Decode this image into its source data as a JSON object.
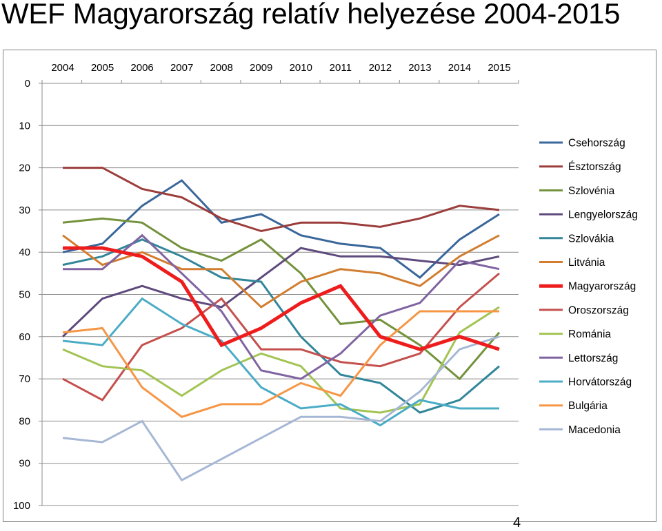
{
  "slide": {
    "title": "WEF Magyarország relatív helyezése 2004-2015",
    "page_number": "4"
  },
  "chart_data": {
    "type": "line",
    "title": "",
    "xlabel": "",
    "ylabel": "",
    "x": [
      "2004",
      "2005",
      "2006",
      "2007",
      "2008",
      "2009",
      "2010",
      "2011",
      "2012",
      "2013",
      "2014",
      "2015"
    ],
    "y_ticks": [
      0,
      10,
      20,
      30,
      40,
      50,
      60,
      70,
      80,
      90,
      100
    ],
    "ylim": [
      0,
      100
    ],
    "y_inverted": true,
    "x_axis_position": "top",
    "grid": "horizontal",
    "legend_position": "right",
    "series": [
      {
        "name": "Csehország",
        "color": "#3a679a",
        "values": [
          40,
          38,
          29,
          23,
          33,
          31,
          36,
          38,
          39,
          46,
          37,
          31
        ]
      },
      {
        "name": "Észtország",
        "color": "#9b3d3b",
        "values": [
          20,
          20,
          25,
          27,
          32,
          35,
          33,
          33,
          34,
          32,
          29,
          30
        ]
      },
      {
        "name": "Szlovénia",
        "color": "#73923b",
        "values": [
          33,
          32,
          33,
          39,
          42,
          37,
          45,
          57,
          56,
          62,
          70,
          59
        ]
      },
      {
        "name": "Lengyelország",
        "color": "#5e4a7c",
        "values": [
          60,
          51,
          48,
          51,
          53,
          46,
          39,
          41,
          41,
          42,
          43,
          41
        ]
      },
      {
        "name": "Szlovákia",
        "color": "#328699",
        "values": [
          43,
          41,
          37,
          41,
          46,
          47,
          60,
          69,
          71,
          78,
          75,
          67
        ]
      },
      {
        "name": "Litvánia",
        "color": "#d27d30",
        "values": [
          36,
          43,
          40,
          44,
          44,
          53,
          47,
          44,
          45,
          48,
          41,
          36
        ]
      },
      {
        "name": "Magyarország",
        "color": "#ee1c1c",
        "values": [
          39,
          39,
          41,
          47,
          62,
          58,
          52,
          48,
          60,
          63,
          60,
          63
        ],
        "emphasis": true
      },
      {
        "name": "Oroszország",
        "color": "#c4504d",
        "values": [
          70,
          75,
          62,
          58,
          51,
          63,
          63,
          66,
          67,
          64,
          53,
          45
        ]
      },
      {
        "name": "Románia",
        "color": "#a2c452",
        "values": [
          63,
          67,
          68,
          74,
          68,
          64,
          67,
          77,
          78,
          76,
          59,
          53
        ]
      },
      {
        "name": "Lettország",
        "color": "#8064a2",
        "values": [
          44,
          44,
          36,
          45,
          54,
          68,
          70,
          64,
          55,
          52,
          42,
          44
        ]
      },
      {
        "name": "Horvátország",
        "color": "#4bacc6",
        "values": [
          61,
          62,
          51,
          57,
          61,
          72,
          77,
          76,
          81,
          75,
          77,
          77
        ]
      },
      {
        "name": "Bulgária",
        "color": "#f69645",
        "values": [
          59,
          58,
          72,
          79,
          76,
          76,
          71,
          74,
          62,
          54,
          54,
          54
        ]
      },
      {
        "name": "Macedonia",
        "color": "#a6b7d5",
        "values": [
          84,
          85,
          80,
          94,
          89,
          84,
          79,
          79,
          80,
          73,
          63,
          60
        ]
      }
    ]
  }
}
